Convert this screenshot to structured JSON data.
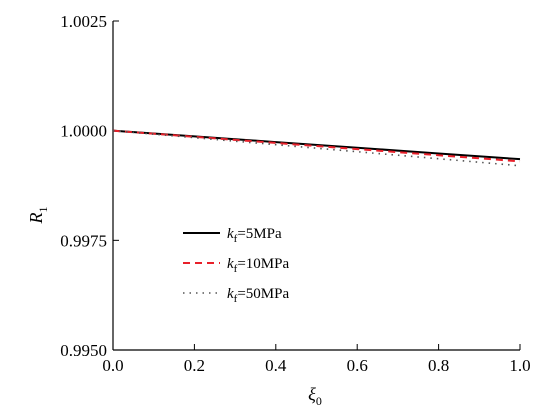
{
  "chart_data": {
    "type": "line",
    "title": "",
    "xlabel": {
      "base": "ξ",
      "sub": "0"
    },
    "ylabel": {
      "base": "R",
      "sub": "1"
    },
    "xlim": [
      0.0,
      1.0
    ],
    "ylim": [
      0.995,
      1.0025
    ],
    "xticks": [
      "0.0",
      "0.2",
      "0.4",
      "0.6",
      "0.8",
      "1.0"
    ],
    "yticks": [
      "0.9950",
      "0.9975",
      "1.0000",
      "1.0025"
    ],
    "grid": false,
    "legend_position": "lower-left",
    "series": [
      {
        "label": {
          "base": "k",
          "sub": "f",
          "value": "=5MPa"
        },
        "color": "#000000",
        "style": "solid",
        "x": [
          0.0,
          0.2,
          0.4,
          0.6,
          0.8,
          1.0
        ],
        "y": [
          1.0,
          0.99987,
          0.99974,
          0.99961,
          0.99948,
          0.99935
        ]
      },
      {
        "label": {
          "base": "k",
          "sub": "f",
          "value": "=10MPa"
        },
        "color": "#e8202a",
        "style": "dashed",
        "x": [
          0.0,
          0.2,
          0.4,
          0.6,
          0.8,
          1.0
        ],
        "y": [
          1.0,
          0.99986,
          0.99972,
          0.99958,
          0.99944,
          0.9993
        ]
      },
      {
        "label": {
          "base": "k",
          "sub": "f",
          "value": "=50MPa"
        },
        "color": "#555555",
        "style": "dotted",
        "x": [
          0.0,
          0.2,
          0.4,
          0.6,
          0.8,
          1.0
        ],
        "y": [
          1.0,
          0.99984,
          0.99968,
          0.99952,
          0.99936,
          0.9992
        ]
      }
    ]
  }
}
